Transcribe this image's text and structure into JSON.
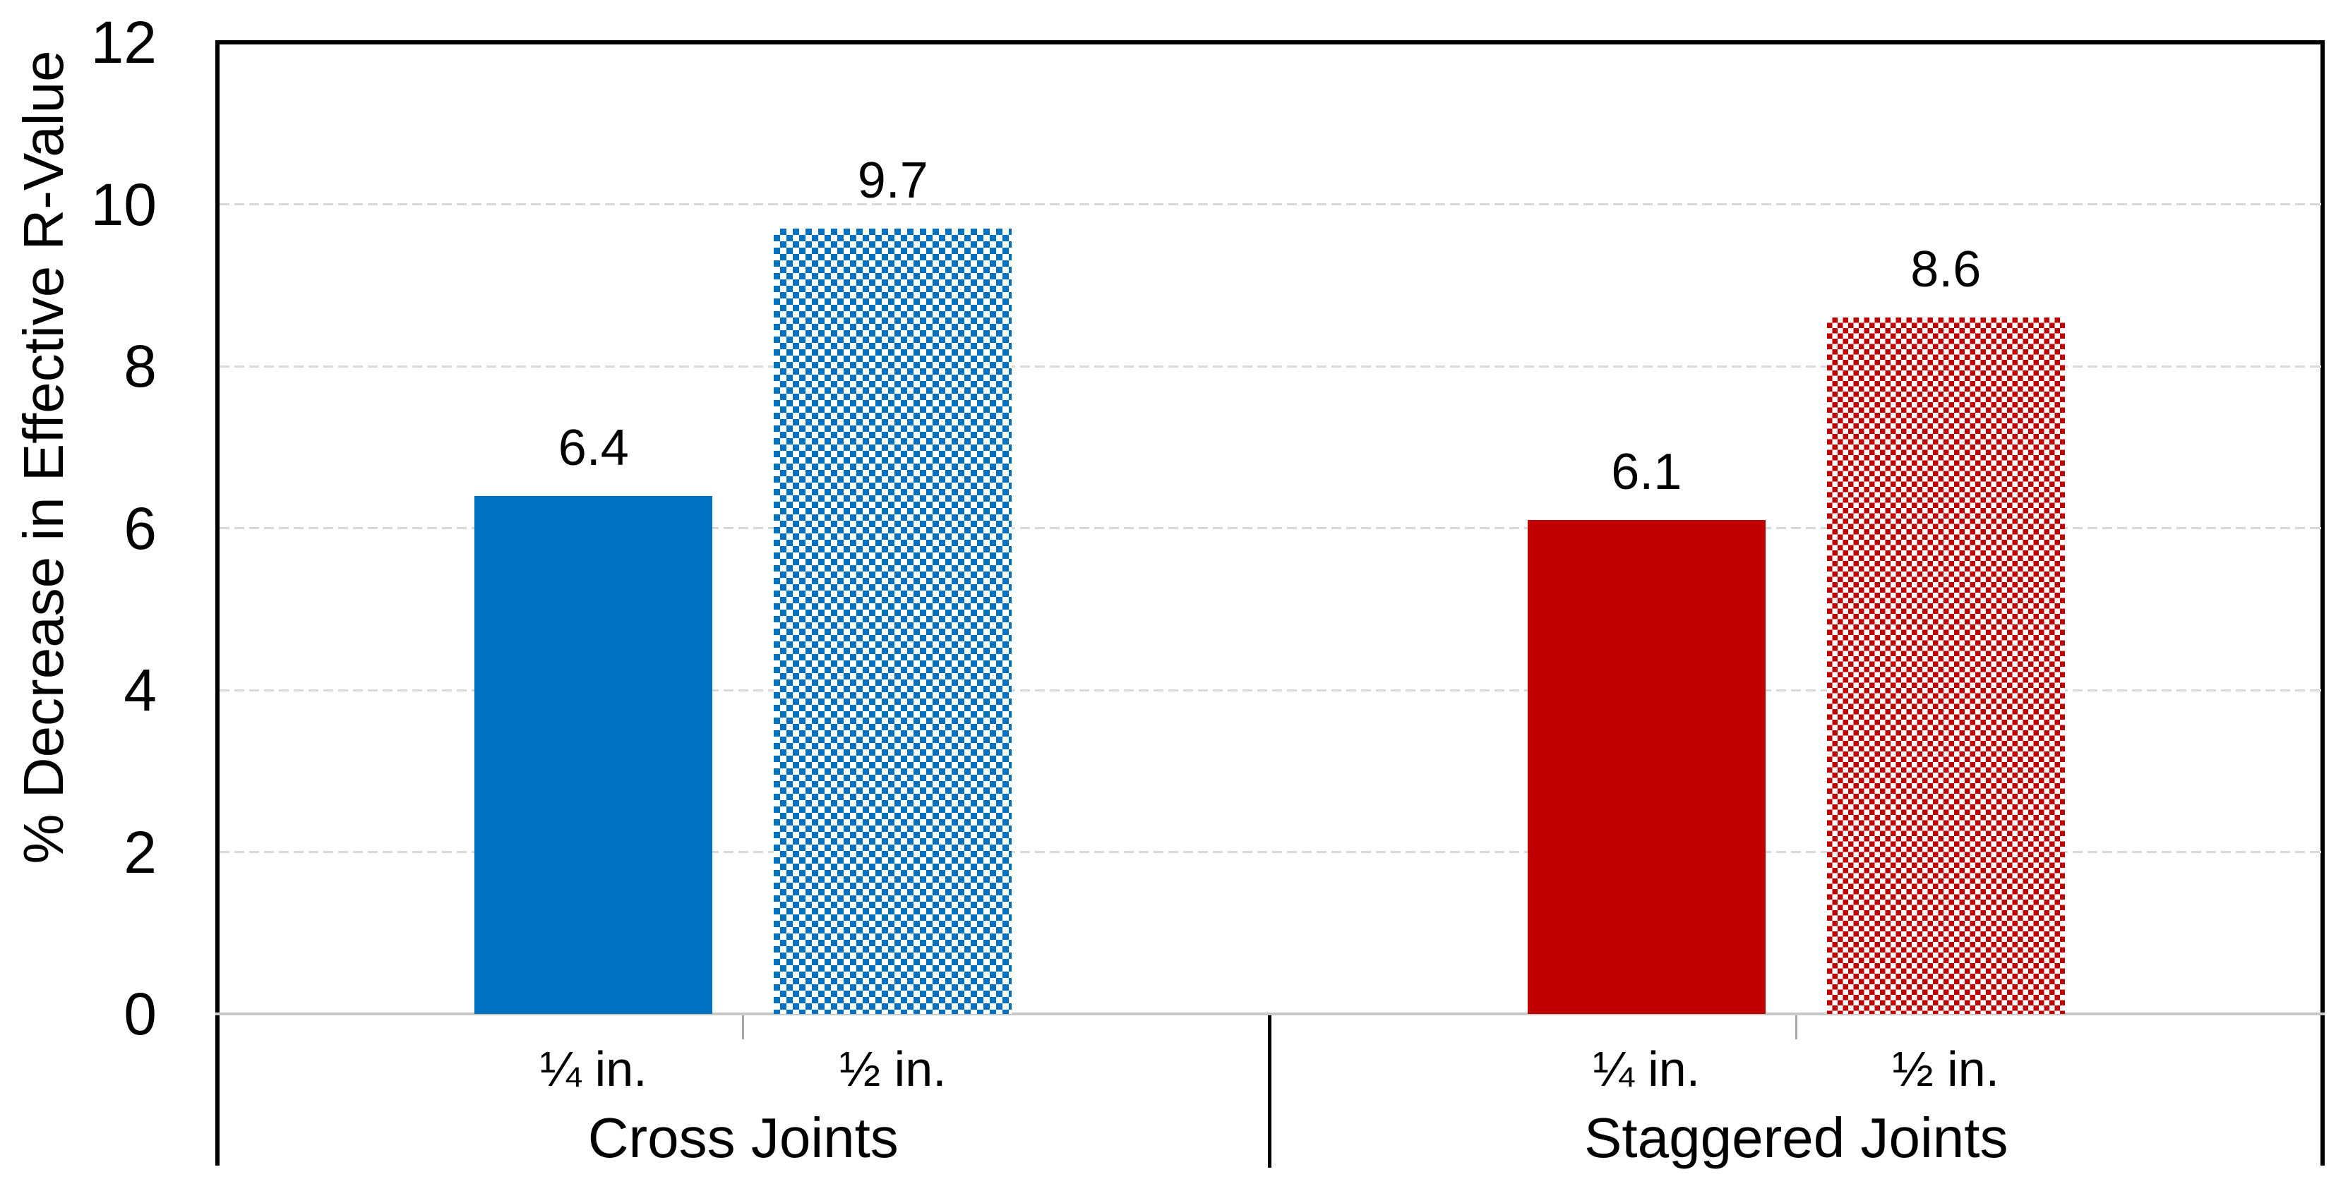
{
  "chart_data": {
    "type": "bar",
    "title": "",
    "xlabel": "",
    "ylabel": "% Decrease in Effective R-Value",
    "ylim": [
      0,
      12
    ],
    "yticks": [
      0,
      2,
      4,
      6,
      8,
      10,
      12
    ],
    "grid": true,
    "legend": false,
    "categories": [
      "Cross Joints",
      "Staggered Joints"
    ],
    "groups": [
      {
        "label": "Cross Joints",
        "bars": [
          {
            "label": "¼ in.",
            "value": 6.4,
            "value_label": "6.4",
            "fill": "solid",
            "color": "#0070c0"
          },
          {
            "label": "½ in.",
            "value": 9.7,
            "value_label": "9.7",
            "fill": "checker",
            "color": "#0070c0"
          }
        ]
      },
      {
        "label": "Staggered Joints",
        "bars": [
          {
            "label": "¼ in.",
            "value": 6.1,
            "value_label": "6.1",
            "fill": "solid",
            "color": "#c00000"
          },
          {
            "label": "½ in.",
            "value": 8.6,
            "value_label": "8.6",
            "fill": "checker",
            "color": "#c00000"
          }
        ]
      }
    ],
    "colors": {
      "cross_joints": "#0070c0",
      "staggered_joints": "#c00000",
      "gridline": "#d9d9d9",
      "axis": "#000000",
      "category_axis_line": "#c9c9c9"
    }
  }
}
